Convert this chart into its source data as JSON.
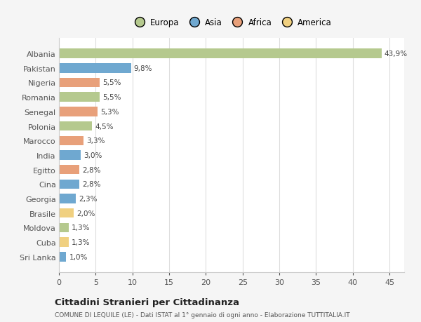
{
  "countries": [
    "Albania",
    "Pakistan",
    "Nigeria",
    "Romania",
    "Senegal",
    "Polonia",
    "Marocco",
    "India",
    "Egitto",
    "Cina",
    "Georgia",
    "Brasile",
    "Moldova",
    "Cuba",
    "Sri Lanka"
  ],
  "values": [
    43.9,
    9.8,
    5.5,
    5.5,
    5.3,
    4.5,
    3.3,
    3.0,
    2.8,
    2.8,
    2.3,
    2.0,
    1.3,
    1.3,
    1.0
  ],
  "labels": [
    "43,9%",
    "9,8%",
    "5,5%",
    "5,5%",
    "5,3%",
    "4,5%",
    "3,3%",
    "3,0%",
    "2,8%",
    "2,8%",
    "2,3%",
    "2,0%",
    "1,3%",
    "1,3%",
    "1,0%"
  ],
  "colors": [
    "#b5c98e",
    "#6fa8d0",
    "#e8a07a",
    "#b5c98e",
    "#e8a07a",
    "#b5c98e",
    "#e8a07a",
    "#6fa8d0",
    "#e8a07a",
    "#6fa8d0",
    "#6fa8d0",
    "#f0d080",
    "#b5c98e",
    "#f0d080",
    "#6fa8d0"
  ],
  "continent_colors": {
    "Europa": "#b5c98e",
    "Asia": "#6fa8d0",
    "Africa": "#e8a07a",
    "America": "#f0d080"
  },
  "title": "Cittadini Stranieri per Cittadinanza",
  "subtitle": "COMUNE DI LEQUILE (LE) - Dati ISTAT al 1° gennaio di ogni anno - Elaborazione TUTTITALIA.IT",
  "xlim": [
    0,
    47
  ],
  "xticks": [
    0,
    5,
    10,
    15,
    20,
    25,
    30,
    35,
    40,
    45
  ],
  "background_color": "#f5f5f5",
  "plot_bg_color": "#ffffff",
  "grid_color": "#dddddd"
}
